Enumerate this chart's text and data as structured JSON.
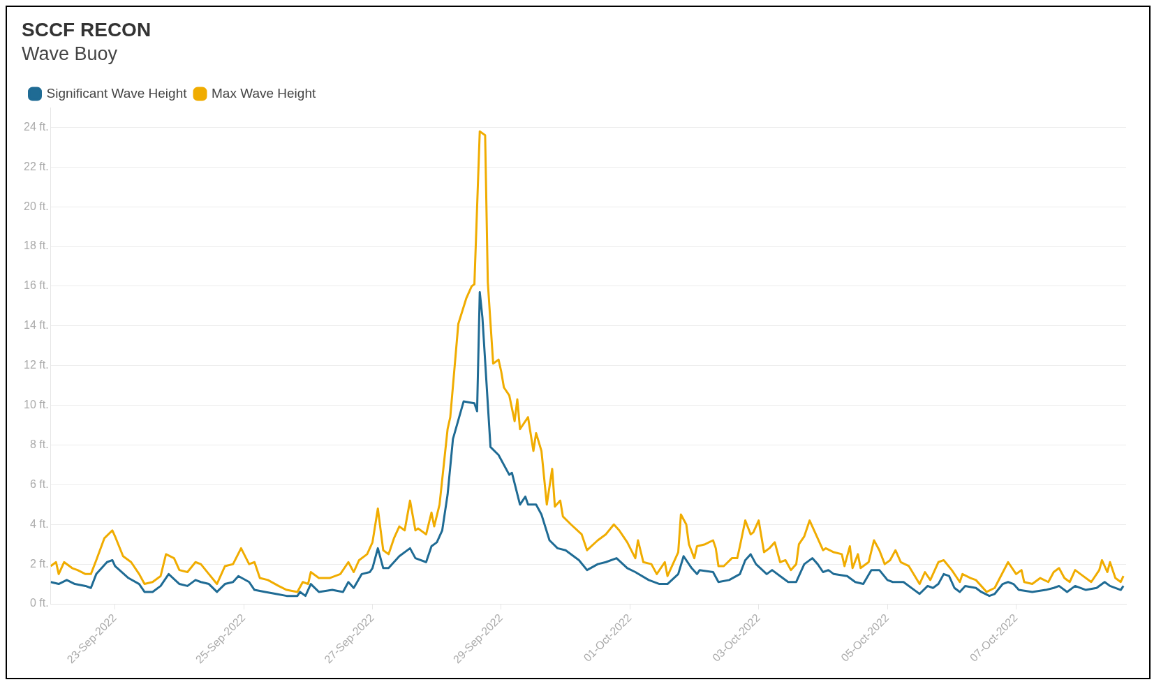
{
  "chart_data": {
    "type": "line",
    "title": "SCCF RECON",
    "subtitle": "Wave Buoy",
    "legend": "top left",
    "grid": "y",
    "marker": "none",
    "line_style": "solid",
    "xlim": [
      "2022-09-22T00:00",
      "2022-10-08T17:00"
    ],
    "xticks": [
      {
        "value": "2022-09-23",
        "label": "23-Sep-2022"
      },
      {
        "value": "2022-09-25",
        "label": "25-Sep-2022"
      },
      {
        "value": "2022-09-27",
        "label": "27-Sep-2022"
      },
      {
        "value": "2022-09-29",
        "label": "29-Sep-2022"
      },
      {
        "value": "2022-10-01",
        "label": "01-Oct-2022"
      },
      {
        "value": "2022-10-03",
        "label": "03-Oct-2022"
      },
      {
        "value": "2022-10-05",
        "label": "05-Oct-2022"
      },
      {
        "value": "2022-10-07",
        "label": "07-Oct-2022"
      }
    ],
    "ylim": [
      0,
      25
    ],
    "yticks": [
      {
        "value": 0,
        "label": "0 ft."
      },
      {
        "value": 2,
        "label": "2 ft."
      },
      {
        "value": 4,
        "label": "4 ft."
      },
      {
        "value": 6,
        "label": "6 ft."
      },
      {
        "value": 8,
        "label": "8 ft."
      },
      {
        "value": 10,
        "label": "10 ft."
      },
      {
        "value": 12,
        "label": "12 ft."
      },
      {
        "value": 14,
        "label": "14 ft."
      },
      {
        "value": 16,
        "label": "16 ft."
      },
      {
        "value": 18,
        "label": "18 ft."
      },
      {
        "value": 20,
        "label": "20 ft."
      },
      {
        "value": 22,
        "label": "22 ft."
      },
      {
        "value": 24,
        "label": "24 ft."
      }
    ],
    "series": [
      {
        "name": "Significant Wave Height",
        "color": "#1f6b94",
        "x": [
          "2022-09-22T00:00",
          "2022-09-22T03:00",
          "2022-09-22T06:00",
          "2022-09-22T09:00",
          "2022-09-22T13:00",
          "2022-09-22T15:00",
          "2022-09-22T17:00",
          "2022-09-22T21:00",
          "2022-09-22T23:00",
          "2022-09-23T00:00",
          "2022-09-23T05:00",
          "2022-09-23T09:00",
          "2022-09-23T11:00",
          "2022-09-23T14:00",
          "2022-09-23T17:00",
          "2022-09-23T20:00",
          "2022-09-24T00:00",
          "2022-09-24T03:00",
          "2022-09-24T06:00",
          "2022-09-24T08:00",
          "2022-09-24T11:00",
          "2022-09-24T14:00",
          "2022-09-24T17:00",
          "2022-09-24T20:00",
          "2022-09-24T22:00",
          "2022-09-25T02:00",
          "2022-09-25T04:00",
          "2022-09-25T08:00",
          "2022-09-25T12:00",
          "2022-09-25T16:00",
          "2022-09-25T20:00",
          "2022-09-25T21:00",
          "2022-09-25T23:00",
          "2022-09-26T01:00",
          "2022-09-26T04:00",
          "2022-09-26T09:00",
          "2022-09-26T13:00",
          "2022-09-26T15:00",
          "2022-09-26T17:00",
          "2022-09-26T20:00",
          "2022-09-26T23:00",
          "2022-09-27T00:00",
          "2022-09-27T02:00",
          "2022-09-27T04:00",
          "2022-09-27T06:00",
          "2022-09-27T10:00",
          "2022-09-27T14:00",
          "2022-09-27T16:00",
          "2022-09-27T20:00",
          "2022-09-27T22:00",
          "2022-09-28T00:00",
          "2022-09-28T02:00",
          "2022-09-28T04:00",
          "2022-09-28T06:00",
          "2022-09-28T10:00",
          "2022-09-28T14:00",
          "2022-09-28T15:00",
          "2022-09-28T16:00",
          "2022-09-28T17:00",
          "2022-09-28T20:00",
          "2022-09-28T23:00",
          "2022-09-29T03:00",
          "2022-09-29T04:00",
          "2022-09-29T07:00",
          "2022-09-29T09:00",
          "2022-09-29T10:00",
          "2022-09-29T13:00",
          "2022-09-29T15:00",
          "2022-09-29T18:00",
          "2022-09-29T21:00",
          "2022-09-30T00:00",
          "2022-09-30T05:00",
          "2022-09-30T08:00",
          "2022-09-30T12:00",
          "2022-09-30T15:00",
          "2022-09-30T19:00",
          "2022-09-30T23:00",
          "2022-10-01T02:00",
          "2022-10-01T07:00",
          "2022-10-01T11:00",
          "2022-10-01T14:00",
          "2022-10-01T18:00",
          "2022-10-01T20:00",
          "2022-10-01T23:00",
          "2022-10-02T01:00",
          "2022-10-02T02:00",
          "2022-10-02T07:00",
          "2022-10-02T09:00",
          "2022-10-02T13:00",
          "2022-10-02T17:00",
          "2022-10-02T19:00",
          "2022-10-02T21:00",
          "2022-10-02T23:00",
          "2022-10-03T03:00",
          "2022-10-03T05:00",
          "2022-10-03T08:00",
          "2022-10-03T11:00",
          "2022-10-03T14:00",
          "2022-10-03T17:00",
          "2022-10-03T20:00",
          "2022-10-03T22:00",
          "2022-10-04T00:00",
          "2022-10-04T02:00",
          "2022-10-04T04:00",
          "2022-10-04T09:00",
          "2022-10-04T12:00",
          "2022-10-04T15:00",
          "2022-10-04T18:00",
          "2022-10-04T21:00",
          "2022-10-05T00:00",
          "2022-10-05T02:00",
          "2022-10-05T06:00",
          "2022-10-05T10:00",
          "2022-10-05T12:00",
          "2022-10-05T15:00",
          "2022-10-05T17:00",
          "2022-10-05T19:00",
          "2022-10-05T21:00",
          "2022-10-05T23:00",
          "2022-10-06T01:00",
          "2022-10-06T03:00",
          "2022-10-06T05:00",
          "2022-10-06T09:00",
          "2022-10-06T11:00",
          "2022-10-06T14:00",
          "2022-10-06T16:00",
          "2022-10-06T19:00",
          "2022-10-06T21:00",
          "2022-10-06T23:00",
          "2022-10-07T01:00",
          "2022-10-07T06:00",
          "2022-10-07T11:00",
          "2022-10-07T14:00",
          "2022-10-07T16:00",
          "2022-10-07T19:00",
          "2022-10-07T22:00",
          "2022-10-08T02:00",
          "2022-10-08T06:00",
          "2022-10-08T09:00",
          "2022-10-08T11:00",
          "2022-10-08T15:00",
          "2022-10-08T16:00"
        ],
        "values": [
          1.1,
          1.0,
          1.2,
          1.0,
          0.9,
          0.8,
          1.5,
          2.1,
          2.2,
          1.9,
          1.3,
          1.0,
          0.6,
          0.6,
          0.9,
          1.5,
          1.0,
          0.9,
          1.2,
          1.1,
          1.0,
          0.6,
          1.0,
          1.1,
          1.4,
          1.1,
          0.7,
          0.6,
          0.5,
          0.4,
          0.4,
          0.6,
          0.4,
          1.0,
          0.6,
          0.7,
          0.6,
          1.1,
          0.8,
          1.5,
          1.6,
          1.8,
          2.8,
          1.8,
          1.8,
          2.4,
          2.8,
          2.3,
          2.1,
          2.9,
          3.1,
          3.7,
          5.5,
          8.3,
          10.2,
          10.1,
          9.7,
          15.7,
          14.4,
          7.9,
          7.5,
          6.5,
          6.6,
          5.0,
          5.4,
          5.0,
          5.0,
          4.5,
          3.2,
          2.8,
          2.7,
          2.2,
          1.7,
          2.0,
          2.1,
          2.3,
          1.8,
          1.6,
          1.2,
          1.0,
          1.0,
          1.5,
          2.4,
          1.8,
          1.5,
          1.7,
          1.6,
          1.1,
          1.2,
          1.5,
          2.2,
          2.5,
          2.0,
          1.5,
          1.7,
          1.4,
          1.1,
          1.1,
          2.0,
          2.3,
          2.0,
          1.6,
          1.7,
          1.5,
          1.4,
          1.1,
          1.0,
          1.7,
          1.7,
          1.2,
          1.1,
          1.1,
          0.7,
          0.5,
          0.9,
          0.8,
          1.0,
          1.5,
          1.4,
          0.8,
          0.6,
          0.9,
          0.8,
          0.6,
          0.4,
          0.5,
          1.0,
          1.1,
          1.0,
          0.7,
          0.6,
          0.7,
          0.8,
          0.9,
          0.6,
          0.9,
          0.7,
          0.8,
          1.1,
          0.9,
          0.7,
          0.9
        ]
      },
      {
        "name": "Max Wave Height",
        "color": "#f0ac00",
        "x": [
          "2022-09-22T00:00",
          "2022-09-22T02:00",
          "2022-09-22T03:00",
          "2022-09-22T05:00",
          "2022-09-22T08:00",
          "2022-09-22T10:00",
          "2022-09-22T13:00",
          "2022-09-22T15:00",
          "2022-09-22T17:00",
          "2022-09-22T20:00",
          "2022-09-22T23:00",
          "2022-09-23T00:00",
          "2022-09-23T03:00",
          "2022-09-23T06:00",
          "2022-09-23T09:00",
          "2022-09-23T11:00",
          "2022-09-23T14:00",
          "2022-09-23T17:00",
          "2022-09-23T19:00",
          "2022-09-23T22:00",
          "2022-09-24T00:00",
          "2022-09-24T03:00",
          "2022-09-24T06:00",
          "2022-09-24T08:00",
          "2022-09-24T11:00",
          "2022-09-24T14:00",
          "2022-09-24T17:00",
          "2022-09-24T20:00",
          "2022-09-24T23:00",
          "2022-09-25T02:00",
          "2022-09-25T04:00",
          "2022-09-25T06:00",
          "2022-09-25T09:00",
          "2022-09-25T13:00",
          "2022-09-25T16:00",
          "2022-09-25T20:00",
          "2022-09-25T22:00",
          "2022-09-26T00:00",
          "2022-09-26T01:00",
          "2022-09-26T04:00",
          "2022-09-26T08:00",
          "2022-09-26T12:00",
          "2022-09-26T15:00",
          "2022-09-26T17:00",
          "2022-09-26T19:00",
          "2022-09-26T22:00",
          "2022-09-27T00:00",
          "2022-09-27T02:00",
          "2022-09-27T04:00",
          "2022-09-27T06:00",
          "2022-09-27T08:00",
          "2022-09-27T10:00",
          "2022-09-27T12:00",
          "2022-09-27T14:00",
          "2022-09-27T16:00",
          "2022-09-27T17:00",
          "2022-09-27T20:00",
          "2022-09-27T22:00",
          "2022-09-27T23:00",
          "2022-09-28T01:00",
          "2022-09-28T04:00",
          "2022-09-28T05:00",
          "2022-09-28T08:00",
          "2022-09-28T11:00",
          "2022-09-28T13:00",
          "2022-09-28T14:00",
          "2022-09-28T16:00",
          "2022-09-28T18:00",
          "2022-09-28T19:00",
          "2022-09-28T21:00",
          "2022-09-28T23:00",
          "2022-09-29T00:00",
          "2022-09-29T01:00",
          "2022-09-29T03:00",
          "2022-09-29T05:00",
          "2022-09-29T06:00",
          "2022-09-29T07:00",
          "2022-09-29T10:00",
          "2022-09-29T12:00",
          "2022-09-29T13:00",
          "2022-09-29T15:00",
          "2022-09-29T17:00",
          "2022-09-29T19:00",
          "2022-09-29T20:00",
          "2022-09-29T22:00",
          "2022-09-29T23:00",
          "2022-09-30T02:00",
          "2022-09-30T06:00",
          "2022-09-30T08:00",
          "2022-09-30T12:00",
          "2022-09-30T15:00",
          "2022-09-30T18:00",
          "2022-09-30T20:00",
          "2022-09-30T23:00",
          "2022-10-01T02:00",
          "2022-10-01T03:00",
          "2022-10-01T05:00",
          "2022-10-01T08:00",
          "2022-10-01T10:00",
          "2022-10-01T13:00",
          "2022-10-01T14:00",
          "2022-10-01T16:00",
          "2022-10-01T18:00",
          "2022-10-01T19:00",
          "2022-10-01T21:00",
          "2022-10-01T22:00",
          "2022-10-02T00:00",
          "2022-10-02T01:00",
          "2022-10-02T04:00",
          "2022-10-02T07:00",
          "2022-10-02T08:00",
          "2022-10-02T09:00",
          "2022-10-02T11:00",
          "2022-10-02T14:00",
          "2022-10-02T16:00",
          "2022-10-02T17:00",
          "2022-10-02T19:00",
          "2022-10-02T21:00",
          "2022-10-02T22:00",
          "2022-10-03T00:00",
          "2022-10-03T02:00",
          "2022-10-03T04:00",
          "2022-10-03T06:00",
          "2022-10-03T08:00",
          "2022-10-03T10:00",
          "2022-10-03T12:00",
          "2022-10-03T14:00",
          "2022-10-03T15:00",
          "2022-10-03T17:00",
          "2022-10-03T19:00",
          "2022-10-03T22:00",
          "2022-10-04T00:00",
          "2022-10-04T01:00",
          "2022-10-04T04:00",
          "2022-10-04T07:00",
          "2022-10-04T08:00",
          "2022-10-04T10:00",
          "2022-10-04T11:00",
          "2022-10-04T13:00",
          "2022-10-04T14:00",
          "2022-10-04T17:00",
          "2022-10-04T19:00",
          "2022-10-04T21:00",
          "2022-10-04T23:00",
          "2022-10-05T01:00",
          "2022-10-05T03:00",
          "2022-10-05T05:00",
          "2022-10-05T08:00",
          "2022-10-05T12:00",
          "2022-10-05T14:00",
          "2022-10-05T16:00",
          "2022-10-05T19:00",
          "2022-10-05T21:00",
          "2022-10-06T00:00",
          "2022-10-06T03:00",
          "2022-10-06T04:00",
          "2022-10-06T07:00",
          "2022-10-06T09:00",
          "2022-10-06T13:00",
          "2022-10-06T16:00",
          "2022-10-06T21:00",
          "2022-10-07T00:00",
          "2022-10-07T02:00",
          "2022-10-07T03:00",
          "2022-10-07T06:00",
          "2022-10-07T09:00",
          "2022-10-07T12:00",
          "2022-10-07T14:00",
          "2022-10-07T16:00",
          "2022-10-07T18:00",
          "2022-10-07T20:00",
          "2022-10-07T22:00",
          "2022-10-08T00:00",
          "2022-10-08T04:00",
          "2022-10-08T07:00",
          "2022-10-08T08:00",
          "2022-10-08T10:00",
          "2022-10-08T11:00",
          "2022-10-08T13:00",
          "2022-10-08T15:00",
          "2022-10-08T16:00"
        ],
        "values": [
          1.9,
          2.1,
          1.5,
          2.1,
          1.8,
          1.7,
          1.5,
          1.5,
          2.2,
          3.3,
          3.7,
          3.4,
          2.4,
          2.1,
          1.5,
          1.0,
          1.1,
          1.4,
          2.5,
          2.3,
          1.7,
          1.6,
          2.1,
          2.0,
          1.5,
          1.0,
          1.9,
          2.0,
          2.8,
          2.0,
          2.1,
          1.3,
          1.2,
          0.9,
          0.7,
          0.6,
          1.1,
          1.0,
          1.6,
          1.3,
          1.3,
          1.5,
          2.1,
          1.6,
          2.2,
          2.5,
          3.1,
          4.8,
          2.7,
          2.5,
          3.3,
          3.9,
          3.7,
          5.2,
          3.7,
          3.8,
          3.5,
          4.6,
          3.9,
          5.0,
          8.8,
          9.4,
          14.1,
          15.4,
          16.0,
          16.1,
          23.8,
          23.6,
          16.2,
          12.1,
          12.3,
          11.7,
          10.9,
          10.5,
          9.2,
          10.3,
          8.8,
          9.4,
          7.7,
          8.6,
          7.7,
          5.0,
          6.8,
          4.9,
          5.2,
          4.4,
          4.0,
          3.5,
          2.7,
          3.2,
          3.5,
          4.0,
          3.7,
          3.1,
          2.3,
          3.2,
          2.1,
          2.0,
          1.5,
          2.1,
          1.4,
          2.0,
          2.6,
          4.5,
          4.0,
          3.0,
          2.3,
          2.9,
          3.0,
          3.2,
          2.8,
          1.9,
          1.9,
          2.3,
          2.3,
          2.9,
          4.2,
          3.5,
          3.6,
          4.2,
          2.6,
          2.8,
          3.1,
          2.1,
          2.2,
          1.7,
          2.0,
          3.0,
          3.4,
          4.2,
          3.3,
          2.7,
          2.8,
          2.6,
          2.5,
          1.9,
          2.9,
          1.8,
          2.5,
          1.8,
          2.1,
          3.2,
          2.7,
          2.0,
          2.2,
          2.7,
          2.1,
          1.9,
          1.0,
          1.6,
          1.2,
          2.1,
          2.2,
          1.7,
          1.1,
          1.5,
          1.3,
          1.2,
          0.6,
          0.8,
          2.1,
          1.5,
          1.7,
          1.1,
          1.0,
          1.3,
          1.1,
          1.6,
          1.8,
          1.3,
          1.1,
          1.7,
          1.5,
          1.1,
          1.7,
          2.2,
          1.6,
          2.1,
          1.3,
          1.1,
          1.4
        ]
      }
    ]
  }
}
